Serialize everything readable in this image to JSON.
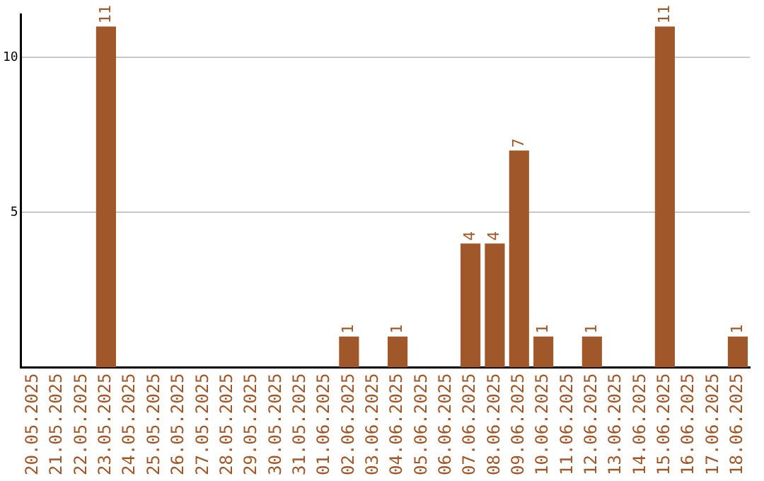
{
  "chart_data": {
    "type": "bar",
    "categories": [
      "20.05.2025",
      "21.05.2025",
      "22.05.2025",
      "23.05.2025",
      "24.05.2025",
      "25.05.2025",
      "26.05.2025",
      "27.05.2025",
      "28.05.2025",
      "29.05.2025",
      "30.05.2025",
      "31.05.2025",
      "01.06.2025",
      "02.06.2025",
      "03.06.2025",
      "04.06.2025",
      "05.06.2025",
      "06.06.2025",
      "07.06.2025",
      "08.06.2025",
      "09.06.2025",
      "10.06.2025",
      "11.06.2025",
      "12.06.2025",
      "13.06.2025",
      "14.06.2025",
      "15.06.2025",
      "16.06.2025",
      "17.06.2025",
      "18.06.2025"
    ],
    "values": [
      0,
      0,
      0,
      11,
      0,
      0,
      0,
      0,
      0,
      0,
      0,
      0,
      0,
      1,
      0,
      1,
      0,
      0,
      4,
      4,
      7,
      1,
      0,
      1,
      0,
      0,
      11,
      0,
      0,
      1
    ],
    "value_labels": [
      null,
      null,
      null,
      "11",
      null,
      null,
      null,
      null,
      null,
      null,
      null,
      null,
      null,
      "1",
      null,
      "1",
      null,
      null,
      "4",
      "4",
      "7",
      "1",
      null,
      "1",
      null,
      null,
      "11",
      null,
      null,
      "1"
    ],
    "color": "#a0582a",
    "ylim": [
      0,
      11.4
    ],
    "yticks": [
      5,
      10
    ],
    "grid": "y",
    "legend": false
  }
}
